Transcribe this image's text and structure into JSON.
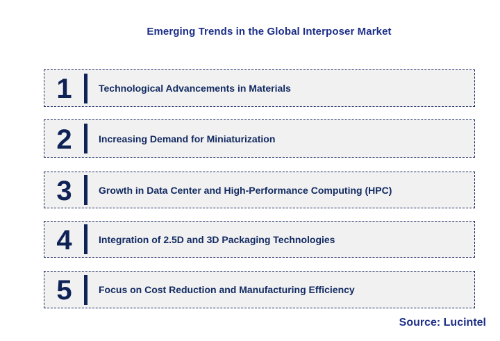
{
  "title": "Emerging Trends in the Global Interposer Market",
  "trends": [
    {
      "number": "1",
      "label": "Technological Advancements in Materials"
    },
    {
      "number": "2",
      "label": "Increasing Demand for Miniaturization"
    },
    {
      "number": "3",
      "label": "Growth in Data Center and High-Performance Computing (HPC)"
    },
    {
      "number": "4",
      "label": "Integration of 2.5D and 3D Packaging Technologies"
    },
    {
      "number": "5",
      "label": "Focus on Cost Reduction and Manufacturing Efficiency"
    }
  ],
  "source": "Source: Lucintel",
  "colors": {
    "accent_navy": "#0f2255",
    "title_blue": "#1d2e87",
    "row_fill": "#f1f1f2",
    "row_border": "#16275c"
  }
}
